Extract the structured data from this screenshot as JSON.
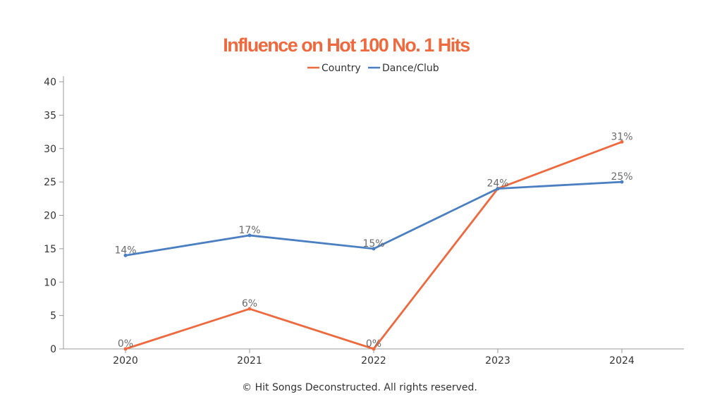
{
  "chart_data": {
    "type": "line",
    "title": "Influence on Hot 100 No. 1 Hits",
    "xlabel": "",
    "ylabel": "",
    "categories": [
      "2020",
      "2021",
      "2022",
      "2023",
      "2024"
    ],
    "ylim": [
      0,
      40
    ],
    "yticks": [
      "0",
      "5",
      "10",
      "15",
      "20",
      "25",
      "30",
      "35",
      "40"
    ],
    "grid": false,
    "legend_position": "top-center",
    "series": [
      {
        "name": "Country",
        "color": "#ee6a3e",
        "values": [
          0,
          6,
          0,
          24,
          31
        ],
        "labels": [
          "0%",
          "6%",
          "0%",
          "24%",
          "31%"
        ]
      },
      {
        "name": "Dance/Club",
        "color": "#4a7fc1",
        "values": [
          14,
          17,
          15,
          24,
          25
        ],
        "labels": [
          "14%",
          "17%",
          "15%",
          "",
          "25%"
        ]
      }
    ]
  },
  "title_color": "#ee6a3e",
  "footer": "© Hit Songs Deconstructed. All rights reserved."
}
